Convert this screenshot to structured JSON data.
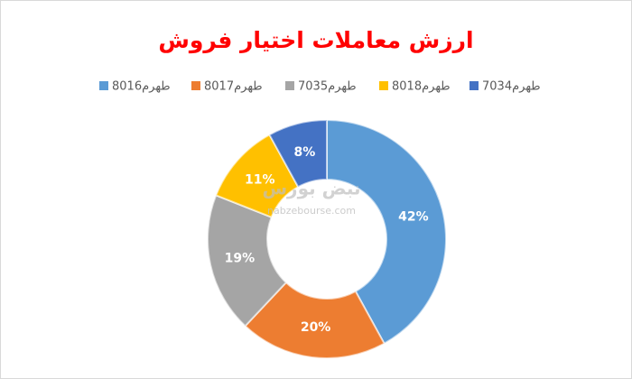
{
  "chart_data": {
    "type": "doughnut",
    "title": "ارزش معاملات اختیار فروش",
    "categories": [
      "طهرم8016",
      "طهرم8017",
      "طهرم7035",
      "طهرم8018",
      "طهرم7034"
    ],
    "values": [
      42,
      20,
      19,
      11,
      8
    ],
    "value_labels": [
      "42%",
      "20%",
      "19%",
      "11%",
      "8%"
    ],
    "colors": [
      "#5b9bd5",
      "#ed7d31",
      "#a5a5a5",
      "#ffc000",
      "#4472c4"
    ],
    "legend": "top",
    "watermark": [
      "نبض بورس",
      "nabzebourse.com"
    ]
  }
}
